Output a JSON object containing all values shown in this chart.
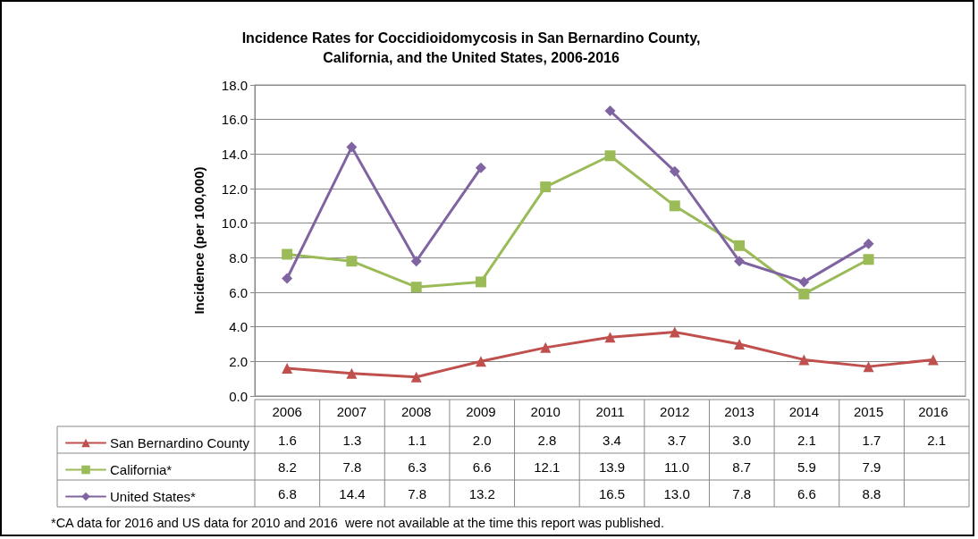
{
  "chart_data": {
    "type": "line",
    "title": "Incidence Rates for Coccidioidomycosis in San Bernardino County,\nCalifornia, and the United States, 2006-2016",
    "ylabel": "Incidence (per 100,000)",
    "categories": [
      "2006",
      "2007",
      "2008",
      "2009",
      "2010",
      "2011",
      "2012",
      "2013",
      "2014",
      "2015",
      "2016"
    ],
    "series": [
      {
        "name": "San Bernardino County",
        "color": "#c0504d",
        "marker": "triangle",
        "values": [
          1.6,
          1.3,
          1.1,
          2.0,
          2.8,
          3.4,
          3.7,
          3.0,
          2.1,
          1.7,
          2.1
        ],
        "value_labels": [
          "1.6",
          "1.3",
          "1.1",
          "2.0",
          "2.8",
          "3.4",
          "3.7",
          "3.0",
          "2.1",
          "1.7",
          "2.1"
        ]
      },
      {
        "name": "California*",
        "color": "#9bbb59",
        "marker": "square",
        "values": [
          8.2,
          7.8,
          6.3,
          6.6,
          12.1,
          13.9,
          11.0,
          8.7,
          5.9,
          7.9,
          null
        ],
        "value_labels": [
          "8.2",
          "7.8",
          "6.3",
          "6.6",
          "12.1",
          "13.9",
          "11.0",
          "8.7",
          "5.9",
          "7.9",
          null
        ]
      },
      {
        "name": "United States*",
        "color": "#8064a2",
        "marker": "diamond",
        "values": [
          6.8,
          14.4,
          7.8,
          13.2,
          null,
          16.5,
          13.0,
          7.8,
          6.6,
          8.8,
          null
        ],
        "value_labels": [
          "6.8",
          "14.4",
          "7.8",
          "13.2",
          null,
          "16.5",
          "13.0",
          "7.8",
          "6.6",
          "8.8",
          null
        ]
      }
    ],
    "ylim": [
      0,
      18
    ],
    "yticks": [
      {
        "value": 0,
        "label": "0.0"
      },
      {
        "value": 2,
        "label": "2.0"
      },
      {
        "value": 4,
        "label": "4.0"
      },
      {
        "value": 6,
        "label": "6.0"
      },
      {
        "value": 8,
        "label": "8.0"
      },
      {
        "value": 10,
        "label": "10.0"
      },
      {
        "value": 12,
        "label": "12.0"
      },
      {
        "value": 14,
        "label": "14.0"
      },
      {
        "value": 16,
        "label": "16.0"
      },
      {
        "value": 18,
        "label": "18.0"
      }
    ],
    "grid": "y",
    "legend": "bottom left",
    "line_style": "solid",
    "annotations": [
      "*CA data for 2016 and US data for 2010 and 2016  were not available at the time this report was published."
    ]
  }
}
